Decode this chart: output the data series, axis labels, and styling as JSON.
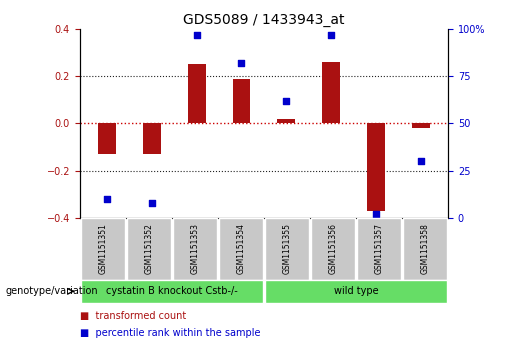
{
  "title": "GDS5089 / 1433943_at",
  "samples": [
    "GSM1151351",
    "GSM1151352",
    "GSM1151353",
    "GSM1151354",
    "GSM1151355",
    "GSM1151356",
    "GSM1151357",
    "GSM1151358"
  ],
  "transformed_count": [
    -0.13,
    -0.13,
    0.25,
    0.19,
    0.02,
    0.26,
    -0.37,
    -0.02
  ],
  "percentile_rank": [
    10,
    8,
    97,
    82,
    62,
    97,
    2,
    30
  ],
  "bar_color": "#aa1111",
  "dot_color": "#0000cc",
  "ylim_left": [
    -0.4,
    0.4
  ],
  "ylim_right": [
    0,
    100
  ],
  "yticks_left": [
    -0.4,
    -0.2,
    0.0,
    0.2,
    0.4
  ],
  "yticks_right": [
    0,
    25,
    50,
    75,
    100
  ],
  "groups": [
    {
      "label": "cystatin B knockout Cstb-/-",
      "start": 0,
      "end": 3,
      "color": "#66dd66"
    },
    {
      "label": "wild type",
      "start": 4,
      "end": 7,
      "color": "#66dd66"
    }
  ],
  "genotype_label": "genotype/variation",
  "legend_items": [
    {
      "label": "transformed count",
      "color": "#aa1111"
    },
    {
      "label": "percentile rank within the sample",
      "color": "#0000cc"
    }
  ],
  "hline_color": "#cc0000",
  "dotted_line_color": "#222222",
  "background_xticklabels": "#c8c8c8",
  "title_fontsize": 10,
  "tick_fontsize": 7,
  "bar_width": 0.4
}
